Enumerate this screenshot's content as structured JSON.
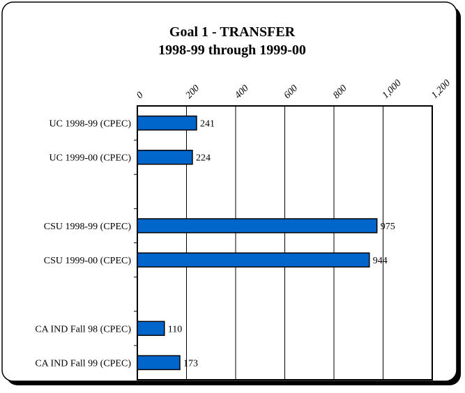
{
  "chart_data": {
    "type": "hbar",
    "title": "Goal 1 - TRANSFER",
    "subtitle": "1998-99 through 1999-00",
    "categories": [
      "UC 1998-99 (CPEC)",
      "UC 1999-00 (CPEC)",
      null,
      "CSU 1998-99 (CPEC)",
      "CSU 1999-00 (CPEC)",
      null,
      "CA IND Fall 98 (CPEC)",
      "CA IND Fall 99 (CPEC)"
    ],
    "values": [
      241,
      224,
      null,
      975,
      944,
      null,
      110,
      173
    ],
    "color": "#0066cc",
    "xlim": [
      0,
      1200
    ],
    "xticks": [
      0,
      200,
      400,
      600,
      800,
      {
        "value": 1000,
        "label": "1,000"
      },
      {
        "value": 1200,
        "label": "1,200"
      }
    ],
    "grid": true
  }
}
